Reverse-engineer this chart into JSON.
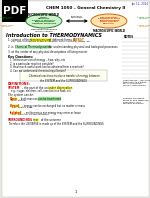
{
  "bg_color": "#e8e8e0",
  "date_text": "Jan 12, 2014",
  "title_line": "CHEM 1050 – General Chemistry II",
  "micro_label": "MICROSCOPIC WORLD",
  "macro_label": "MACROSCOPIC WORLD",
  "left_ellipse_fc": "#d0f0d0",
  "left_ellipse_ec": "#228B22",
  "right_ellipse_fc": "#ffe4b0",
  "right_ellipse_ec": "#cc6600",
  "left_box_text": "Atoms\nMolecules\nKinetic & Statistics\nThermodynamics\nQuantum Mechanics",
  "right_box_text": "Gas Properties\nEquations of State\nThermodynamics\nPhase changes\nReactions",
  "left_outside_label": "CHEM 1020\nGeneral",
  "right_outside_label": "CHEM 1050\nGeneral",
  "diff_eq_label": "Differential Equations\nMatrix Algebra",
  "stat_mech_label": "Statistical\nMechanics",
  "intro_header": "Introduction to THERMODYNAMICS",
  "bullet1a": "science of the ",
  "bullet1b": "interconversion",
  "bullet1c": " of different forms of ",
  "bullet1d": "ENERGY",
  "bullet1e": "",
  "bullet1_line2": "e.g.: inter-conversion of work, chemical work, chemical things, etc",
  "bullet2a": "is ",
  "bullet2b": "Chemical Thermodynamics",
  "bullet2c": " for understanding physical and biological processes",
  "bullet3": "at the center of any physical descriptions of living matter",
  "kq_header": "Key Questions:",
  "kq1": "interconversion of energy – how, why, etc",
  "kq2": "is a particular reaction possible?",
  "kq3": "How much useful work can be obtained from a reaction?",
  "kq4": "Can we understand chemical equilibrium?",
  "center_note": "Chemical reactions involve a transfer of energy between\nthe SYSTEM and the SURROUNDINGS",
  "def_header": "DEFINITIONS:",
  "system_label": "SYSTEM",
  "system_text": " – the part of the universe ",
  "system_highlight": "under observation",
  "system_eg": "e.g.: sugar, electron, cell, reaction in a flask, etc",
  "types_header": "The system can be:",
  "type1_label": "Open",
  "type1_text": " – both mass and energy ",
  "type1_highlight": "can be transferred",
  "type1_eg": "e.g.: beaker",
  "type2_label": "Closed",
  "type2_text": " – energy can be exchanged but no matter or mass",
  "type2_eg": "e.g.: sealed flask",
  "type3_label": "Isolated",
  "type3_text": " – neither mass nor energy may enter or leave",
  "type3_eg": "e.g.: isolated, closed container",
  "surr_label": "SURROUNDINGS",
  "surr_text": " – the ",
  "surr_highlight": "rest",
  "surr_text2": " of the universe",
  "universe_line": "Therefore the UNIVERSE is made up of the SYSTEM and the SURROUNDINGS",
  "notes_header": "NOTES",
  "note1": "Spontaneous - reactions\nthat occur in a given\nset of conditions\nwithout intervention",
  "note2": "Thermal Dynamics:\nstudy of how gases will\nbehave/act as a\nfunction of motion"
}
